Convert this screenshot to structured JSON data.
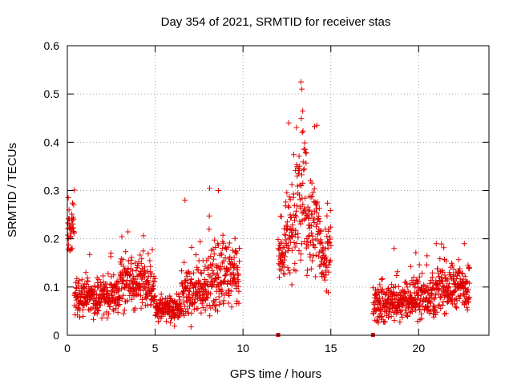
{
  "chart_data": {
    "type": "scatter",
    "title": "Day 354 of 2021, SRMTID for receiver stas",
    "xlabel": "GPS time / hours",
    "ylabel": "SRMTID / TECUs",
    "xlim": [
      0,
      24
    ],
    "ylim": [
      0,
      0.6
    ],
    "grid": true,
    "marker": "+",
    "series_color": "#e00000",
    "x_ticks": [
      "0",
      "5",
      "10",
      "15",
      "20"
    ],
    "x_tick_values": [
      0,
      5,
      10,
      15,
      20
    ],
    "y_ticks": [
      "0",
      "0.1",
      "0.2",
      "0.3",
      "0.4",
      "0.5",
      "0.6"
    ],
    "y_tick_values": [
      0,
      0.1,
      0.2,
      0.3,
      0.4,
      0.5,
      0.6
    ],
    "segments": [
      {
        "t0": 0.0,
        "t1": 0.4,
        "base": 0.22,
        "spread": 0.05
      },
      {
        "t0": 0.4,
        "t1": 3.0,
        "base": 0.08,
        "spread": 0.035
      },
      {
        "t0": 3.0,
        "t1": 4.4,
        "base": 0.11,
        "spread": 0.05
      },
      {
        "t0": 4.4,
        "t1": 5.0,
        "base": 0.09,
        "spread": 0.04
      },
      {
        "t0": 5.0,
        "t1": 6.5,
        "base": 0.055,
        "spread": 0.025
      },
      {
        "t0": 6.5,
        "t1": 8.0,
        "base": 0.09,
        "spread": 0.05
      },
      {
        "t0": 8.0,
        "t1": 9.8,
        "base": 0.12,
        "spread": 0.07
      },
      {
        "t0": 12.0,
        "t1": 12.4,
        "base": 0.16,
        "spread": 0.05
      },
      {
        "t0": 12.4,
        "t1": 13.0,
        "base": 0.22,
        "spread": 0.1
      },
      {
        "t0": 13.0,
        "t1": 13.6,
        "base": 0.28,
        "spread": 0.13
      },
      {
        "t0": 13.6,
        "t1": 14.4,
        "base": 0.22,
        "spread": 0.1
      },
      {
        "t0": 14.4,
        "t1": 15.0,
        "base": 0.17,
        "spread": 0.06
      },
      {
        "t0": 17.4,
        "t1": 18.5,
        "base": 0.065,
        "spread": 0.035
      },
      {
        "t0": 18.5,
        "t1": 19.6,
        "base": 0.07,
        "spread": 0.035
      },
      {
        "t0": 19.6,
        "t1": 21.0,
        "base": 0.08,
        "spread": 0.04
      },
      {
        "t0": 21.0,
        "t1": 22.9,
        "base": 0.1,
        "spread": 0.045
      }
    ],
    "peaks": [
      {
        "x": 0.05,
        "y": 0.285
      },
      {
        "x": 13.3,
        "y": 0.525
      },
      {
        "x": 13.35,
        "y": 0.51
      },
      {
        "x": 13.4,
        "y": 0.465
      },
      {
        "x": 12.6,
        "y": 0.44
      },
      {
        "x": 14.2,
        "y": 0.435
      },
      {
        "x": 8.6,
        "y": 0.3
      },
      {
        "x": 6.7,
        "y": 0.28
      },
      {
        "x": 21.0,
        "y": 0.19
      },
      {
        "x": 22.6,
        "y": 0.19
      },
      {
        "x": 18.6,
        "y": 0.18
      }
    ],
    "zero_markers": [
      12.0,
      17.4
    ]
  }
}
